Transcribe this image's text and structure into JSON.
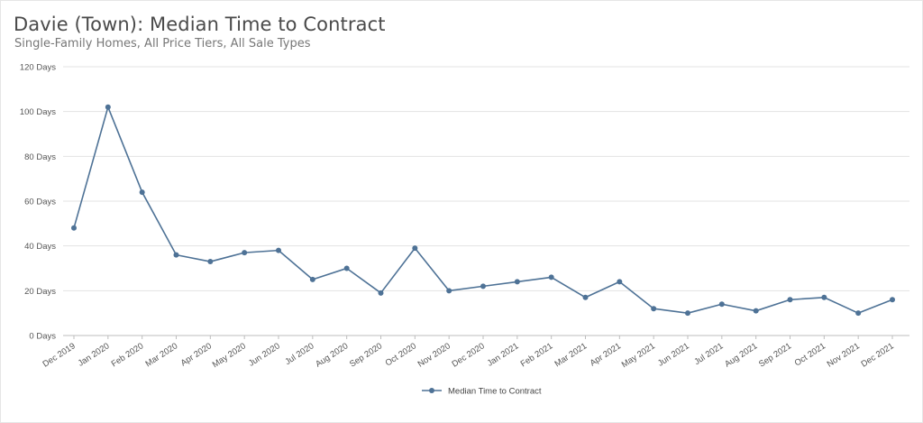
{
  "chart": {
    "title": "Davie (Town): Median Time to Contract",
    "subtitle": "Single-Family Homes, All Price Tiers, All Sale Types"
  },
  "chart_data": {
    "type": "line",
    "title": "Davie (Town): Median Time to Contract",
    "subtitle": "Single-Family Homes, All Price Tiers, All Sale Types",
    "xlabel": "",
    "ylabel": "",
    "ylim": [
      0,
      120
    ],
    "yticks": [
      0,
      20,
      40,
      60,
      80,
      100,
      120
    ],
    "ytick_labels": [
      "0 Days",
      "20 Days",
      "40 Days",
      "60 Days",
      "80 Days",
      "100 Days",
      "120 Days"
    ],
    "grid": true,
    "legend_position": "bottom-center",
    "categories": [
      "Dec 2019",
      "Jan 2020",
      "Feb 2020",
      "Mar 2020",
      "Apr 2020",
      "May 2020",
      "Jun 2020",
      "Jul 2020",
      "Aug 2020",
      "Sep 2020",
      "Oct 2020",
      "Nov 2020",
      "Dec 2020",
      "Jan 2021",
      "Feb 2021",
      "Mar 2021",
      "Apr 2021",
      "May 2021",
      "Jun 2021",
      "Jul 2021",
      "Aug 2021",
      "Sep 2021",
      "Oct 2021",
      "Nov 2021",
      "Dec 2021"
    ],
    "series": [
      {
        "name": "Median Time to Contract",
        "color": "#4e7296",
        "values": [
          48,
          102,
          64,
          36,
          33,
          37,
          38,
          25,
          30,
          19,
          39,
          20,
          22,
          24,
          26,
          17,
          24,
          12,
          10,
          14,
          11,
          16,
          17,
          10,
          16
        ]
      }
    ]
  }
}
